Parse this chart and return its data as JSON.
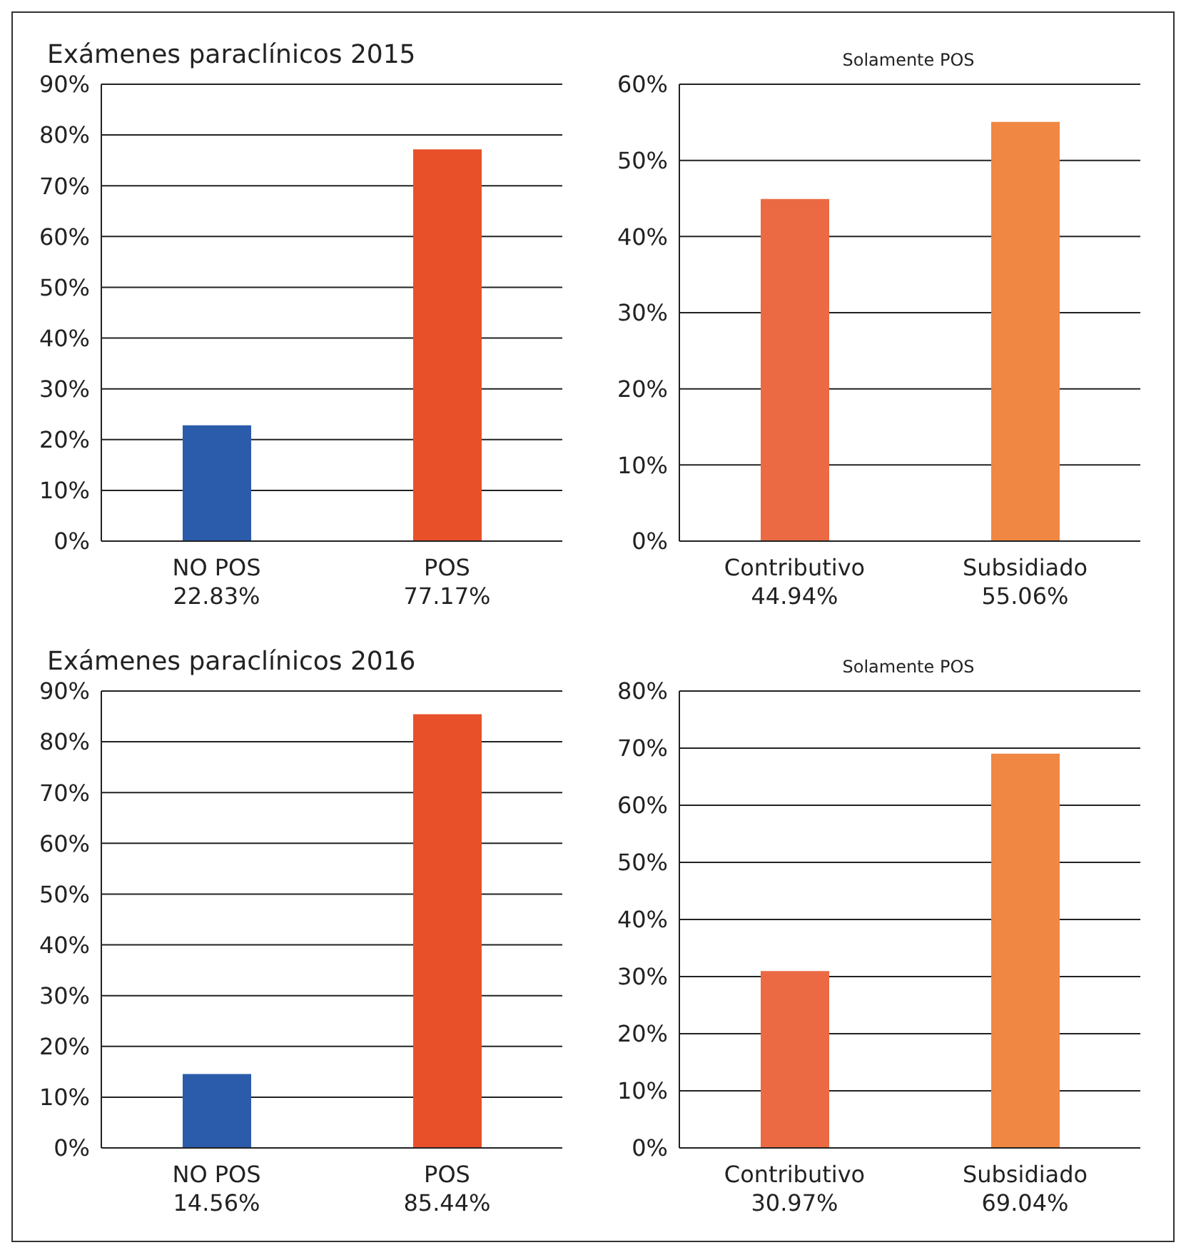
{
  "chart_data": [
    {
      "type": "bar",
      "title": "Exámenes paraclínicos 2015",
      "categories": [
        "NO POS",
        "POS"
      ],
      "values": [
        22.83,
        77.17
      ],
      "colors": [
        "#2b5cac",
        "#e8502a"
      ],
      "value_labels": [
        "22.83%",
        "77.17%"
      ],
      "ylim": [
        0,
        90
      ],
      "yticks": [
        {
          "value": 0,
          "label": "0%"
        },
        {
          "value": 10,
          "label": "10%"
        },
        {
          "value": 20,
          "label": "20%"
        },
        {
          "value": 30,
          "label": "30%"
        },
        {
          "value": 40,
          "label": "40%"
        },
        {
          "value": 50,
          "label": "50%"
        },
        {
          "value": 60,
          "label": "60%"
        },
        {
          "value": 70,
          "label": "70%"
        },
        {
          "value": 80,
          "label": "80%"
        },
        {
          "value": 90,
          "label": "90%"
        }
      ],
      "grid": "y"
    },
    {
      "type": "bar",
      "subtitle": "Solamente POS",
      "categories": [
        "Contributivo",
        "Subsidiado"
      ],
      "values": [
        44.94,
        55.06
      ],
      "colors": [
        "#eb6a43",
        "#f08742"
      ],
      "value_labels": [
        "44.94%",
        "55.06%"
      ],
      "ylim": [
        0,
        60
      ],
      "yticks": [
        {
          "value": 0,
          "label": "0%"
        },
        {
          "value": 10,
          "label": "10%"
        },
        {
          "value": 20,
          "label": "20%"
        },
        {
          "value": 30,
          "label": "30%"
        },
        {
          "value": 40,
          "label": "40%"
        },
        {
          "value": 50,
          "label": "50%"
        },
        {
          "value": 60,
          "label": "60%"
        }
      ],
      "grid": "y"
    },
    {
      "type": "bar",
      "title": "Exámenes paraclínicos 2016",
      "categories": [
        "NO POS",
        "POS"
      ],
      "values": [
        14.56,
        85.44
      ],
      "colors": [
        "#2b5cac",
        "#e8502a"
      ],
      "value_labels": [
        "14.56%",
        "85.44%"
      ],
      "ylim": [
        0,
        90
      ],
      "yticks": [
        {
          "value": 0,
          "label": "0%"
        },
        {
          "value": 10,
          "label": "10%"
        },
        {
          "value": 20,
          "label": "20%"
        },
        {
          "value": 30,
          "label": "30%"
        },
        {
          "value": 40,
          "label": "40%"
        },
        {
          "value": 50,
          "label": "50%"
        },
        {
          "value": 60,
          "label": "60%"
        },
        {
          "value": 70,
          "label": "70%"
        },
        {
          "value": 80,
          "label": "80%"
        },
        {
          "value": 90,
          "label": "90%"
        }
      ],
      "grid": "y"
    },
    {
      "type": "bar",
      "subtitle": "Solamente POS",
      "categories": [
        "Contributivo",
        "Subsidiado"
      ],
      "values": [
        30.97,
        69.04
      ],
      "colors": [
        "#eb6a43",
        "#f08742"
      ],
      "value_labels": [
        "30.97%",
        "69.04%"
      ],
      "ylim": [
        0,
        80
      ],
      "yticks": [
        {
          "value": 0,
          "label": "0%"
        },
        {
          "value": 10,
          "label": "10%"
        },
        {
          "value": 20,
          "label": "20%"
        },
        {
          "value": 30,
          "label": "30%"
        },
        {
          "value": 40,
          "label": "40%"
        },
        {
          "value": 50,
          "label": "50%"
        },
        {
          "value": 60,
          "label": "60%"
        },
        {
          "value": 70,
          "label": "70%"
        },
        {
          "value": 80,
          "label": "80%"
        }
      ],
      "grid": "y"
    }
  ]
}
